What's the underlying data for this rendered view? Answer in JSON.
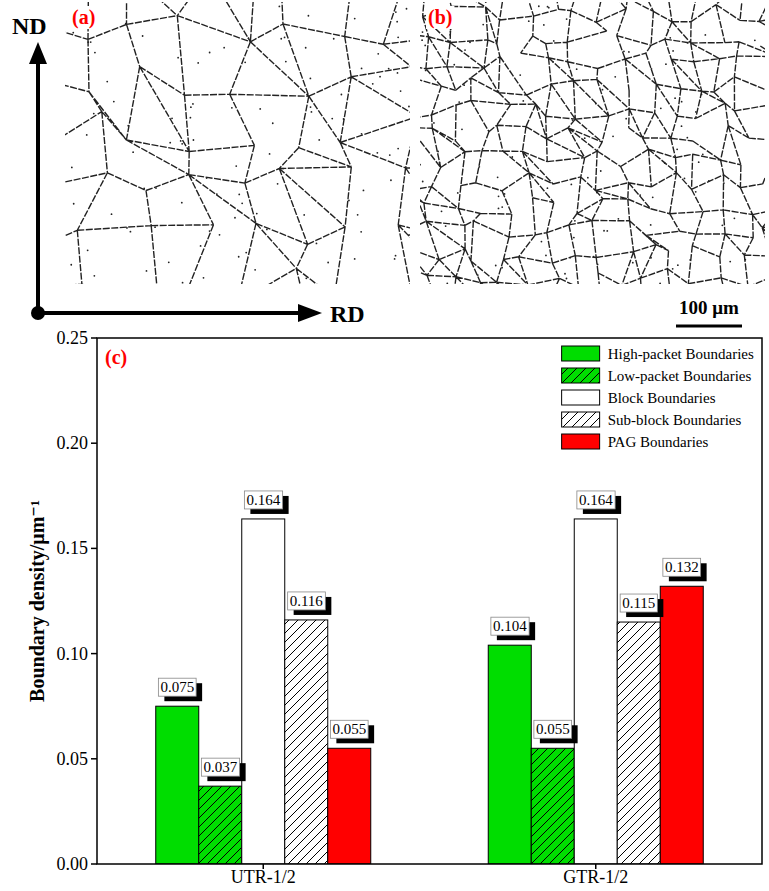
{
  "chart_data": {
    "type": "bar",
    "y_label": "Boundary density/μm⁻¹",
    "categories": [
      "UTR-1/2",
      "GTR-1/2"
    ],
    "series": [
      {
        "name": "High-packet Boundaries",
        "color": "#00dd00",
        "values": [
          0.075,
          0.104
        ]
      },
      {
        "name": "Low-packet Boundaries",
        "color": "#00dd00",
        "values": [
          0.037,
          0.055
        ]
      },
      {
        "name": "Block Boundaries",
        "color": "#ffffff",
        "values": [
          0.164,
          0.164
        ]
      },
      {
        "name": "Sub-block Boundaries",
        "color": "#ffffff",
        "values": [
          0.116,
          0.115
        ]
      },
      {
        "name": "PAG Boundaries",
        "color": "#ff0000",
        "values": [
          0.055,
          0.132
        ]
      }
    ],
    "ylim": [
      0,
      0.25
    ],
    "yticks": [
      {
        "value": 0,
        "label": "0.00"
      },
      {
        "value": 0.05,
        "label": "0.05"
      },
      {
        "value": 0.1,
        "label": "0.10"
      },
      {
        "value": 0.15,
        "label": "0.15"
      },
      {
        "value": 0.2,
        "label": "0.20"
      },
      {
        "value": 0.25,
        "label": "0.25"
      }
    ],
    "grid": false,
    "legend": "top-right",
    "data_labels": true
  },
  "figure": {
    "panel_labels": [
      "(a)",
      "(b)",
      "(c)"
    ],
    "direction_labels": {
      "vertical": "ND",
      "horizontal": "RD"
    },
    "scale_bar": "100 μm"
  }
}
